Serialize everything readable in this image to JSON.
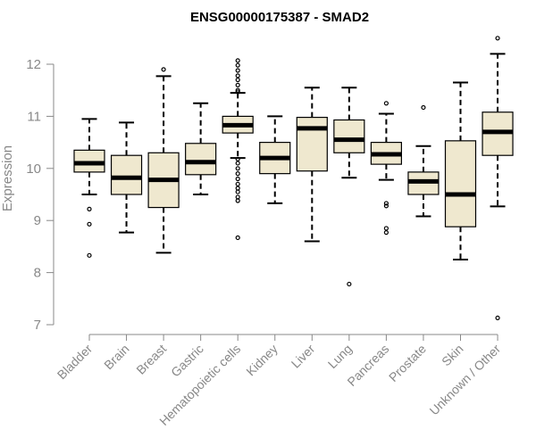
{
  "chart_data": {
    "type": "boxplot",
    "title": "ENSG00000175387 - SMAD2",
    "xlabel": "",
    "ylabel": "Expression",
    "ylim": [
      7,
      12.5
    ],
    "yticks": [
      7,
      8,
      9,
      10,
      11,
      12
    ],
    "colors": {
      "box_fill": "#efe8cf",
      "box_stroke": "#000000",
      "axis": "#888888"
    },
    "categories": [
      "Bladder",
      "Brain",
      "Breast",
      "Gastric",
      "Hematopoietic cells",
      "Kidney",
      "Liver",
      "Lung",
      "Pancreas",
      "Prostate",
      "Skin",
      "Unknown / Other"
    ],
    "boxes": [
      {
        "min": 9.5,
        "q1": 9.93,
        "median": 10.1,
        "q3": 10.35,
        "max": 10.95,
        "outliers": [
          9.22,
          8.93,
          8.33
        ]
      },
      {
        "min": 8.77,
        "q1": 9.5,
        "median": 9.82,
        "q3": 10.25,
        "max": 10.88,
        "outliers": []
      },
      {
        "min": 8.38,
        "q1": 9.25,
        "median": 9.78,
        "q3": 10.3,
        "max": 11.77,
        "outliers": [
          11.9
        ]
      },
      {
        "min": 9.5,
        "q1": 9.88,
        "median": 10.12,
        "q3": 10.48,
        "max": 11.25,
        "outliers": []
      },
      {
        "min": 10.2,
        "q1": 10.68,
        "median": 10.83,
        "q3": 11.0,
        "max": 11.45,
        "outliers": [
          12.07,
          11.98,
          11.88,
          11.78,
          11.7,
          11.6,
          11.5,
          11.47,
          10.18,
          10.1,
          10.0,
          9.9,
          9.8,
          9.7,
          9.62,
          9.55,
          9.45,
          9.38,
          8.67
        ]
      },
      {
        "min": 9.33,
        "q1": 9.9,
        "median": 10.2,
        "q3": 10.5,
        "max": 11.0,
        "outliers": []
      },
      {
        "min": 8.6,
        "q1": 9.95,
        "median": 10.77,
        "q3": 10.98,
        "max": 11.55,
        "outliers": []
      },
      {
        "min": 9.82,
        "q1": 10.3,
        "median": 10.55,
        "q3": 10.93,
        "max": 11.55,
        "outliers": [
          7.78
        ]
      },
      {
        "min": 9.78,
        "q1": 10.08,
        "median": 10.27,
        "q3": 10.5,
        "max": 11.05,
        "outliers": [
          11.25,
          9.33,
          9.28,
          8.85,
          8.77
        ]
      },
      {
        "min": 9.08,
        "q1": 9.5,
        "median": 9.75,
        "q3": 9.93,
        "max": 10.43,
        "outliers": [
          11.17
        ]
      },
      {
        "min": 8.25,
        "q1": 8.88,
        "median": 9.5,
        "q3": 10.53,
        "max": 11.65,
        "outliers": []
      },
      {
        "min": 9.27,
        "q1": 10.25,
        "median": 10.7,
        "q3": 11.08,
        "max": 12.2,
        "outliers": [
          12.5,
          7.13
        ]
      }
    ]
  }
}
